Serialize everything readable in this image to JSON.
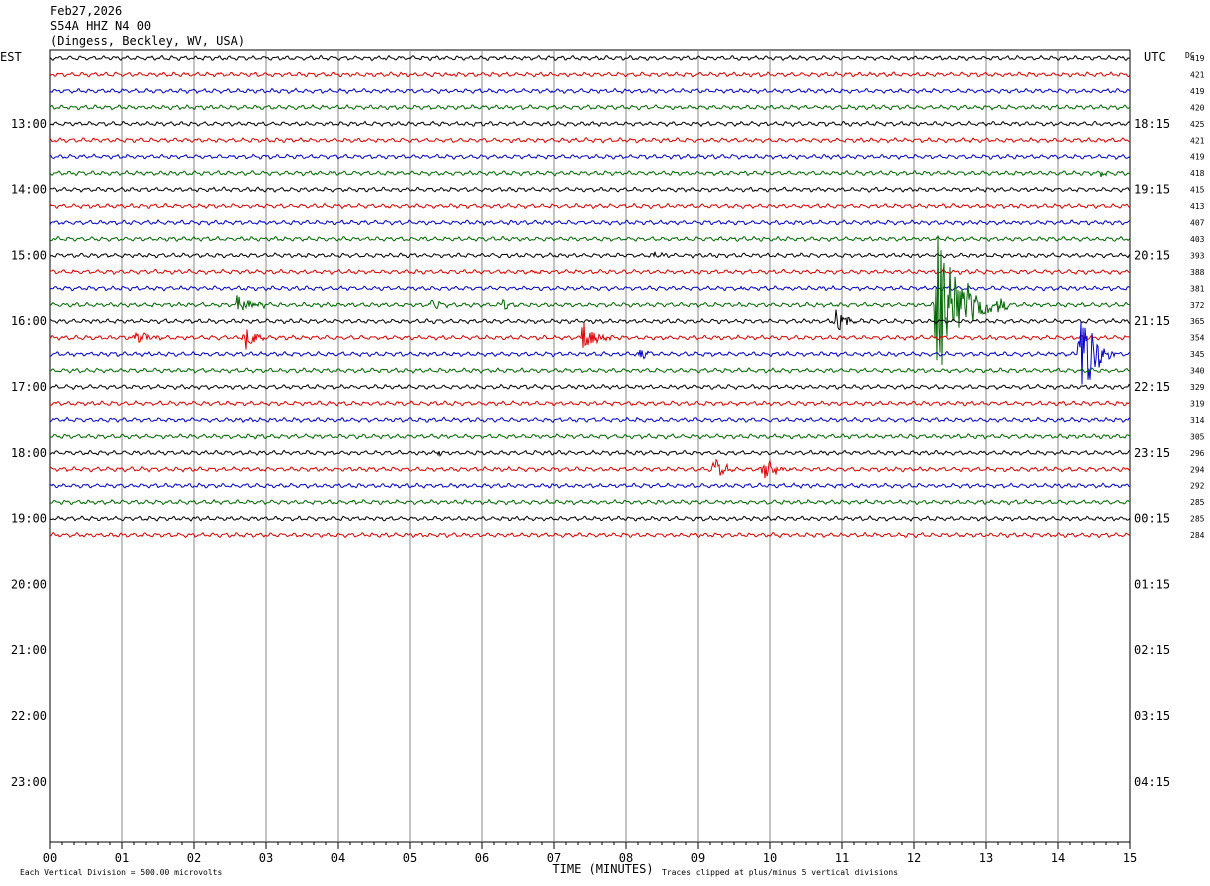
{
  "header": {
    "date": "Feb27,2026",
    "station": "S54A HHZ N4 00",
    "location": "(Dingess, Beckley, WV, USA)"
  },
  "chart_data": {
    "type": "helicorder",
    "left_zone_label": "EST",
    "right_zone_label": "UTC",
    "dc_label": "DC",
    "xlabel": "TIME (MINUTES)",
    "x_ticks": [
      "00",
      "01",
      "02",
      "03",
      "04",
      "05",
      "06",
      "07",
      "08",
      "09",
      "10",
      "11",
      "12",
      "13",
      "14",
      "15"
    ],
    "xlim": [
      0,
      15
    ],
    "rows_per_hour": 4,
    "total_rows": 44,
    "left_hour_labels": [
      "13:00",
      "14:00",
      "15:00",
      "16:00",
      "17:00",
      "18:00",
      "19:00",
      "20:00",
      "21:00",
      "22:00",
      "23:00"
    ],
    "right_hour_labels": [
      "18:15",
      "19:15",
      "20:15",
      "21:15",
      "22:15",
      "23:15",
      "00:15",
      "01:15",
      "02:15",
      "03:15",
      "04:15"
    ],
    "first_labeled_row": 4,
    "trace_colors": [
      "#000000",
      "#dd0000",
      "#0000cc",
      "#006600"
    ],
    "dc_offsets": [
      419,
      421,
      419,
      420,
      425,
      421,
      419,
      418,
      415,
      413,
      407,
      403,
      393,
      388,
      381,
      372,
      365,
      354,
      345,
      340,
      329,
      319,
      314,
      305,
      296,
      294,
      292,
      285,
      285,
      284
    ],
    "events": [
      {
        "row": 1,
        "minute": 5.5,
        "amp": 5,
        "dur": 0.2
      },
      {
        "row": 7,
        "minute": 14.6,
        "amp": 4,
        "dur": 0.15
      },
      {
        "row": 12,
        "minute": 8.4,
        "amp": 5,
        "dur": 0.2
      },
      {
        "row": 13,
        "minute": 6.7,
        "amp": 3,
        "dur": 0.2
      },
      {
        "row": 14,
        "minute": 9.6,
        "amp": 3,
        "dur": 0.2
      },
      {
        "row": 15,
        "minute": 2.6,
        "amp": 12,
        "dur": 0.5
      },
      {
        "row": 15,
        "minute": 5.3,
        "amp": 6,
        "dur": 0.3
      },
      {
        "row": 15,
        "minute": 6.3,
        "amp": 8,
        "dur": 0.3
      },
      {
        "row": 15,
        "minute": 12.3,
        "amp": 80,
        "dur": 1.0
      },
      {
        "row": 16,
        "minute": 10.9,
        "amp": 14,
        "dur": 0.4
      },
      {
        "row": 17,
        "minute": 1.2,
        "amp": 8,
        "dur": 0.4
      },
      {
        "row": 17,
        "minute": 2.7,
        "amp": 18,
        "dur": 0.3
      },
      {
        "row": 17,
        "minute": 7.4,
        "amp": 18,
        "dur": 0.4
      },
      {
        "row": 18,
        "minute": 8.2,
        "amp": 6,
        "dur": 0.3
      },
      {
        "row": 18,
        "minute": 14.3,
        "amp": 60,
        "dur": 0.5
      },
      {
        "row": 24,
        "minute": 5.4,
        "amp": 8,
        "dur": 0.05
      },
      {
        "row": 25,
        "minute": 9.2,
        "amp": 14,
        "dur": 0.4
      },
      {
        "row": 25,
        "minute": 9.9,
        "amp": 18,
        "dur": 0.4
      }
    ],
    "footer_left": "Each Vertical Division =  500.00 microvolts",
    "footer_right": "Traces clipped at plus/minus 5 vertical divisions"
  }
}
